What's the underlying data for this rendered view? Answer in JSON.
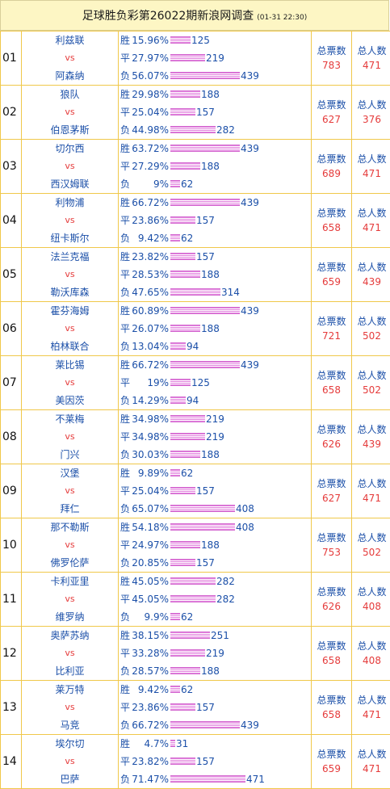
{
  "header": {
    "title": "足球胜负彩第26022期新浪网调查",
    "time": "(01-31 22:30)"
  },
  "labels": {
    "win": "胜",
    "draw": "平",
    "loss": "负",
    "vs": "vs",
    "total_votes": "总票数",
    "total_people": "总人数"
  },
  "colors": {
    "team": "#1b4fa8",
    "vs": "#e53b3b",
    "bar": "#e283de",
    "border": "#f0c84a",
    "header_bg": "#fdf6c4"
  },
  "matches": [
    {
      "num": "01",
      "home": "利兹联",
      "away": "阿森纳",
      "win_pct": "15.96%",
      "win": 125,
      "draw_pct": "27.97%",
      "draw": 219,
      "loss_pct": "56.07%",
      "loss": 439,
      "votes": "783",
      "people": "471"
    },
    {
      "num": "02",
      "home": "狼队",
      "away": "伯恩茅斯",
      "win_pct": "29.98%",
      "win": 188,
      "draw_pct": "25.04%",
      "draw": 157,
      "loss_pct": "44.98%",
      "loss": 282,
      "votes": "627",
      "people": "376"
    },
    {
      "num": "03",
      "home": "切尔西",
      "away": "西汉姆联",
      "win_pct": "63.72%",
      "win": 439,
      "draw_pct": "27.29%",
      "draw": 188,
      "loss_pct": "9%",
      "loss": 62,
      "votes": "689",
      "people": "471"
    },
    {
      "num": "04",
      "home": "利物浦",
      "away": "纽卡斯尔",
      "win_pct": "66.72%",
      "win": 439,
      "draw_pct": "23.86%",
      "draw": 157,
      "loss_pct": "9.42%",
      "loss": 62,
      "votes": "658",
      "people": "471"
    },
    {
      "num": "05",
      "home": "法兰克福",
      "away": "勒沃库森",
      "win_pct": "23.82%",
      "win": 157,
      "draw_pct": "28.53%",
      "draw": 188,
      "loss_pct": "47.65%",
      "loss": 314,
      "votes": "659",
      "people": "439"
    },
    {
      "num": "06",
      "home": "霍芬海姆",
      "away": "柏林联合",
      "win_pct": "60.89%",
      "win": 439,
      "draw_pct": "26.07%",
      "draw": 188,
      "loss_pct": "13.04%",
      "loss": 94,
      "votes": "721",
      "people": "502"
    },
    {
      "num": "07",
      "home": "莱比锡",
      "away": "美因茨",
      "win_pct": "66.72%",
      "win": 439,
      "draw_pct": "19%",
      "draw": 125,
      "loss_pct": "14.29%",
      "loss": 94,
      "votes": "658",
      "people": "502"
    },
    {
      "num": "08",
      "home": "不莱梅",
      "away": "门兴",
      "win_pct": "34.98%",
      "win": 219,
      "draw_pct": "34.98%",
      "draw": 219,
      "loss_pct": "30.03%",
      "loss": 188,
      "votes": "626",
      "people": "439"
    },
    {
      "num": "09",
      "home": "汉堡",
      "away": "拜仁",
      "win_pct": "9.89%",
      "win": 62,
      "draw_pct": "25.04%",
      "draw": 157,
      "loss_pct": "65.07%",
      "loss": 408,
      "votes": "627",
      "people": "471"
    },
    {
      "num": "10",
      "home": "那不勒斯",
      "away": "佛罗伦萨",
      "win_pct": "54.18%",
      "win": 408,
      "draw_pct": "24.97%",
      "draw": 188,
      "loss_pct": "20.85%",
      "loss": 157,
      "votes": "753",
      "people": "502"
    },
    {
      "num": "11",
      "home": "卡利亚里",
      "away": "维罗纳",
      "win_pct": "45.05%",
      "win": 282,
      "draw_pct": "45.05%",
      "draw": 282,
      "loss_pct": "9.9%",
      "loss": 62,
      "votes": "626",
      "people": "408"
    },
    {
      "num": "12",
      "home": "奥萨苏纳",
      "away": "比利亚",
      "win_pct": "38.15%",
      "win": 251,
      "draw_pct": "33.28%",
      "draw": 219,
      "loss_pct": "28.57%",
      "loss": 188,
      "votes": "658",
      "people": "408"
    },
    {
      "num": "13",
      "home": "莱万特",
      "away": "马竞",
      "win_pct": "9.42%",
      "win": 62,
      "draw_pct": "23.86%",
      "draw": 157,
      "loss_pct": "66.72%",
      "loss": 439,
      "votes": "658",
      "people": "471"
    },
    {
      "num": "14",
      "home": "埃尔切",
      "away": "巴萨",
      "win_pct": "4.7%",
      "win": 31,
      "draw_pct": "23.82%",
      "draw": 157,
      "loss_pct": "71.47%",
      "loss": 471,
      "votes": "659",
      "people": "471"
    }
  ]
}
